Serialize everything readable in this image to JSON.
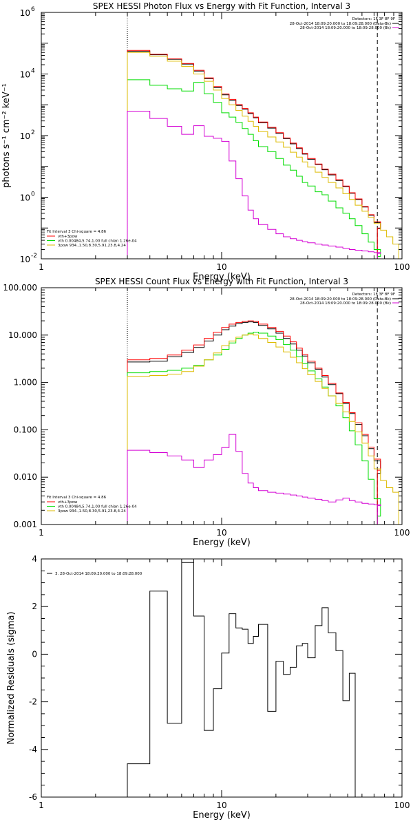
{
  "chart_data": [
    {
      "type": "line",
      "title": "SPEX HESSI Photon Flux vs Energy with Fit Function, Interval 3",
      "xlabel": "Energy (keV)",
      "ylabel": "photons s⁻¹ cm⁻² keV⁻¹",
      "xscale": "log",
      "yscale": "log",
      "xlim": [
        1,
        100
      ],
      "ylim": [
        0.01,
        1000000
      ],
      "x_ticks": [
        {
          "v": 1,
          "label": "1"
        },
        {
          "v": 10,
          "label": "10"
        },
        {
          "v": 100,
          "label": "100"
        }
      ],
      "y_ticks": [
        {
          "v": 0.01,
          "base": "10",
          "exp": "-2"
        },
        {
          "v": 1,
          "base": "10",
          "exp": "0"
        },
        {
          "v": 100,
          "base": "10",
          "exp": "2"
        },
        {
          "v": 10000,
          "base": "10",
          "exp": "4"
        },
        {
          "v": 1000000,
          "base": "10",
          "exp": "6"
        }
      ],
      "edges": [
        3,
        4,
        5,
        6,
        7,
        8,
        9,
        10,
        11,
        12,
        13,
        14,
        15,
        16,
        18,
        20,
        22,
        24,
        26,
        28,
        30,
        33,
        36,
        39,
        43,
        47,
        51,
        55,
        60,
        65,
        70,
        76,
        82,
        89,
        96
      ],
      "vlines": [
        {
          "x": 3,
          "style": "dotted"
        },
        {
          "x": 73,
          "style": "dashed"
        }
      ],
      "legend_top": {
        "header": "Detectors: 1F 3F 8F 9F",
        "items": [
          {
            "text": "28-Oct-2014 18:09:20.000 to 18:09:28.000 (Data-Bk)",
            "color": "#000000"
          },
          {
            "text": "28-Oct-2014 18:09:20.000 to 18:09:28.000 (Bk)",
            "color": "#d400d4"
          }
        ]
      },
      "legend_bottom": {
        "header": "Fit Interval 3   Chi-square = 4.86",
        "items": [
          {
            "text": "vth+3pow",
            "color": "#ff0000"
          },
          {
            "text": "vth 0.00484,5.74,1.00  full chian 1.26e-04",
            "color": "#00dd00"
          },
          {
            "text": "3pow 934.,1.50,8.30,5.91,23.8,4.24",
            "color": "#ddbb00"
          }
        ]
      },
      "series": [
        {
          "name": "28-Oct-2014 18:09:20.000 to 18:09:28.000 (Data-Bk)",
          "color": "#000000",
          "x_range": [
            3,
            73
          ],
          "values": [
            55000,
            42000,
            30000,
            21000,
            12500,
            7000,
            3600,
            2100,
            1400,
            950,
            720,
            520,
            380,
            260,
            175,
            118,
            80,
            54,
            38,
            25,
            17,
            11.5,
            7.8,
            5.3,
            3.5,
            2.2,
            1.35,
            0.85,
            0.48,
            0.26,
            0.15,
            0.095
          ]
        },
        {
          "name": "vth+3pow",
          "color": "#ff0000",
          "x_range": [
            3,
            73
          ],
          "values": [
            58000,
            44000,
            31000,
            22000,
            13200,
            7500,
            3900,
            2250,
            1500,
            1020,
            760,
            550,
            400,
            275,
            185,
            125,
            84,
            57,
            40,
            26.5,
            18,
            12,
            8.2,
            5.6,
            3.7,
            2.3,
            1.4,
            0.88,
            0.5,
            0.27,
            0.16,
            0.1
          ]
        },
        {
          "name": "vth 0.00484,5.74,1.00  full chian 1.26e-04",
          "color": "#00dd00",
          "x_range": [
            3,
            73
          ],
          "values": [
            6500,
            4300,
            3300,
            2800,
            5300,
            2300,
            1200,
            550,
            400,
            270,
            170,
            110,
            68,
            44,
            30,
            18,
            11,
            7.5,
            4.8,
            3,
            2.3,
            1.5,
            1.2,
            0.75,
            0.45,
            0.3,
            0.2,
            0.12,
            0.065,
            0.035,
            0.02,
            0.012
          ]
        },
        {
          "name": "3pow 934.,1.50,8.30,5.91,23.8,4.24",
          "color": "#ddbb00",
          "x_range": [
            3,
            96
          ],
          "values": [
            50000,
            38000,
            26000,
            17500,
            10000,
            5800,
            3000,
            1600,
            1000,
            650,
            430,
            290,
            200,
            135,
            90,
            62,
            42,
            29,
            20,
            14,
            9.5,
            6.5,
            4.4,
            3,
            2,
            1.3,
            0.85,
            0.55,
            0.35,
            0.22,
            0.14,
            0.085,
            0.052,
            0.03
          ]
        },
        {
          "name": "28-Oct-2014 18:09:20.000 to 18:09:28.000 (Bk)",
          "color": "#d400d4",
          "x_range": [
            3,
            73
          ],
          "values": [
            620,
            360,
            200,
            110,
            210,
            95,
            82,
            65,
            15,
            4,
            1.1,
            0.38,
            0.2,
            0.13,
            0.09,
            0.065,
            0.052,
            0.045,
            0.04,
            0.036,
            0.033,
            0.03,
            0.028,
            0.026,
            0.024,
            0.022,
            0.02,
            0.019,
            0.018,
            0.017,
            0.016,
            0.015
          ]
        }
      ]
    },
    {
      "type": "line",
      "title": "SPEX HESSI Count Flux vs Energy with Fit Function, Interval 3",
      "xlabel": "Energy (keV)",
      "ylabel": "",
      "xscale": "log",
      "yscale": "log",
      "xlim": [
        1,
        100
      ],
      "ylim": [
        0.001,
        100
      ],
      "x_ticks": [
        {
          "v": 1,
          "label": "1"
        },
        {
          "v": 10,
          "label": "10"
        },
        {
          "v": 100,
          "label": "100"
        }
      ],
      "y_ticks": [
        {
          "v": 0.001,
          "label": "0.001"
        },
        {
          "v": 0.01,
          "label": "0.010"
        },
        {
          "v": 0.1,
          "label": "0.100"
        },
        {
          "v": 1,
          "label": "1.000"
        },
        {
          "v": 10,
          "label": "10.000"
        },
        {
          "v": 100,
          "label": "100.000"
        }
      ],
      "edges": [
        3,
        4,
        5,
        6,
        7,
        8,
        9,
        10,
        11,
        12,
        13,
        14,
        15,
        16,
        18,
        20,
        22,
        24,
        26,
        28,
        30,
        33,
        36,
        39,
        43,
        47,
        51,
        55,
        60,
        65,
        70,
        76,
        82,
        89,
        96
      ],
      "vlines": [
        {
          "x": 3,
          "style": "dotted"
        },
        {
          "x": 73,
          "style": "dashed"
        }
      ],
      "legend_top": {
        "header": "Detectors: 1F 3F 8F 9F",
        "items": [
          {
            "text": "28-Oct-2014 18:09:20.000 to 18:09:28.000 (Data-Bk)",
            "color": "#000000"
          },
          {
            "text": "28-Oct-2014 18:09:20.000 to 18:09:28.000 (Bk)",
            "color": "#d400d4"
          }
        ]
      },
      "legend_bottom": {
        "header": "Fit Interval 3   Chi-square = 4.86",
        "items": [
          {
            "text": "vth+3pow",
            "color": "#ff0000"
          },
          {
            "text": "vth 0.00484,5.74,1.00  full chian 1.26e-04",
            "color": "#00dd00"
          },
          {
            "text": "3pow 934.,1.50,8.30,5.91,23.8,4.24",
            "color": "#ddbb00"
          }
        ]
      },
      "series": [
        {
          "name": "28-Oct-2014 18:09:20.000 to 18:09:28.000 (Data-Bk)",
          "color": "#000000",
          "x_range": [
            3,
            73
          ],
          "values": [
            2.7,
            2.8,
            3.5,
            4.3,
            5.5,
            7.5,
            10,
            13,
            15.5,
            17.5,
            18.5,
            19,
            18.5,
            16,
            13.5,
            11,
            8.5,
            6.5,
            4.8,
            3.6,
            2.6,
            1.9,
            1.3,
            0.9,
            0.58,
            0.36,
            0.22,
            0.13,
            0.075,
            0.04,
            0.022,
            0.012
          ]
        },
        {
          "name": "vth+3pow",
          "color": "#ff0000",
          "x_range": [
            3,
            73
          ],
          "values": [
            3,
            3.2,
            3.8,
            4.8,
            6.2,
            8.5,
            11.5,
            14.5,
            17,
            18.5,
            19.5,
            20,
            19.5,
            17,
            14.5,
            12,
            9.5,
            7.2,
            5.3,
            3.9,
            2.8,
            2,
            1.4,
            0.95,
            0.6,
            0.38,
            0.23,
            0.14,
            0.08,
            0.043,
            0.024,
            0.014
          ]
        },
        {
          "name": "vth 0.00484,5.74,1.00  full chian 1.26e-04",
          "color": "#00dd00",
          "x_range": [
            3,
            73
          ],
          "values": [
            1.6,
            1.7,
            1.8,
            2,
            2.3,
            3,
            3.8,
            5,
            6.8,
            8.5,
            10,
            11,
            11.5,
            11,
            9.5,
            8,
            6.3,
            4.8,
            3.5,
            2.5,
            1.75,
            1.2,
            0.8,
            0.52,
            0.32,
            0.18,
            0.095,
            0.048,
            0.022,
            0.009,
            0.0035,
            0.0015
          ]
        },
        {
          "name": "3pow 934.,1.50,8.30,5.91,23.8,4.24",
          "color": "#ddbb00",
          "x_range": [
            3,
            96
          ],
          "values": [
            1.35,
            1.4,
            1.5,
            1.7,
            2.2,
            3,
            4.2,
            6,
            7.5,
            9,
            10,
            10.5,
            10,
            8.5,
            7,
            5.6,
            4.4,
            3.4,
            2.6,
            1.95,
            1.45,
            1.05,
            0.75,
            0.52,
            0.36,
            0.24,
            0.15,
            0.09,
            0.052,
            0.028,
            0.015,
            0.0085,
            0.006,
            0.0048
          ]
        },
        {
          "name": "28-Oct-2014 18:09:20.000 to 18:09:28.000 (Bk)",
          "color": "#d400d4",
          "x_range": [
            3,
            73
          ],
          "values": [
            0.037,
            0.033,
            0.028,
            0.023,
            0.016,
            0.023,
            0.03,
            0.042,
            0.08,
            0.035,
            0.012,
            0.0075,
            0.006,
            0.0052,
            0.0048,
            0.0046,
            0.0044,
            0.0042,
            0.004,
            0.0038,
            0.0036,
            0.0034,
            0.0032,
            0.003,
            0.0033,
            0.0036,
            0.0032,
            0.003,
            0.0028,
            0.0027,
            0.0026,
            0.0025
          ]
        }
      ]
    },
    {
      "type": "line",
      "title": "",
      "xlabel": "Energy (keV)",
      "ylabel": "Normalized Residuals (sigma)",
      "xscale": "log",
      "yscale": "linear",
      "xlim": [
        1,
        100
      ],
      "ylim": [
        -6,
        4
      ],
      "x_ticks": [
        {
          "v": 1,
          "label": "1"
        },
        {
          "v": 10,
          "label": "10"
        },
        {
          "v": 100,
          "label": "100"
        }
      ],
      "y_ticks": [
        {
          "v": -6,
          "label": "-6"
        },
        {
          "v": -4,
          "label": "-4"
        },
        {
          "v": -2,
          "label": "-2"
        },
        {
          "v": 0,
          "label": "0"
        },
        {
          "v": 2,
          "label": "2"
        },
        {
          "v": 4,
          "label": "4"
        }
      ],
      "edges": [
        3,
        4,
        5,
        6,
        7,
        8,
        9,
        10,
        11,
        12,
        13,
        14,
        15,
        16,
        18,
        20,
        22,
        24,
        26,
        28,
        30,
        33,
        36,
        39,
        43,
        47,
        51,
        55,
        60,
        65,
        70,
        76,
        82,
        89,
        96
      ],
      "legend_top": {
        "header": "",
        "items": [
          {
            "text": "3. 28-Oct-2014 18:09:20.000 to 18:09:28.000",
            "color": "#000000"
          }
        ]
      },
      "series": [
        {
          "name": "3. 28-Oct-2014 18:09:20.000 to 18:09:28.000",
          "color": "#000000",
          "x_range": [
            3,
            76
          ],
          "values": [
            -4.6,
            2.65,
            -2.9,
            3.85,
            1.6,
            -3.2,
            -1.45,
            0.05,
            1.7,
            1.1,
            1.05,
            0.45,
            0.75,
            1.25,
            -2.4,
            -0.3,
            -0.85,
            -0.55,
            0.35,
            0.45,
            -0.15,
            1.2,
            1.95,
            0.9,
            0.15,
            -1.95,
            -0.8,
            -6.5
          ]
        }
      ]
    }
  ]
}
